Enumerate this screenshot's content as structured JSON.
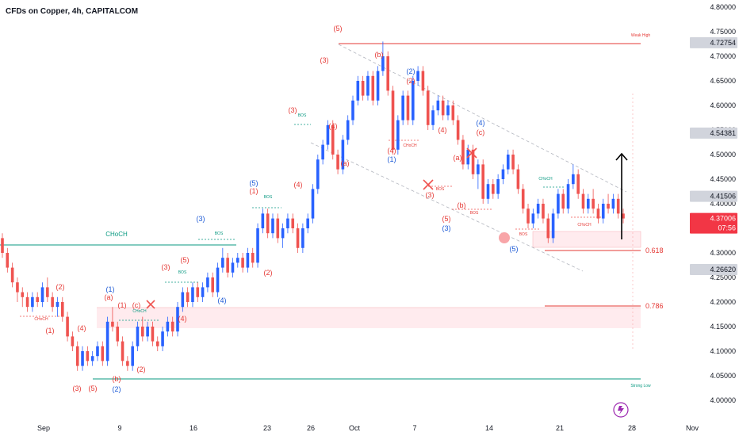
{
  "header": {
    "title": "CFDs on Copper, 4h, CAPITALCOM"
  },
  "colors": {
    "up": "#2962ff",
    "down": "#ef5350",
    "wave_red": "#e53935",
    "wave_blue": "#1e5bd6",
    "green": "#089981",
    "zone": "#ffebee",
    "label_gray": "#787b86",
    "price_tag_red": "#f23645"
  },
  "chart_data": {
    "type": "candlestick",
    "title": "CFDs on Copper, 4h, CAPITALCOM",
    "ylim": [
      4.0,
      4.8
    ],
    "y_ticks": [
      "4.80000",
      "4.75000",
      "4.70000",
      "4.65000",
      "4.60000",
      "4.55000",
      "4.50000",
      "4.45000",
      "4.40000",
      "4.35000",
      "4.30000",
      "4.25000",
      "4.20000",
      "4.15000",
      "4.10000",
      "4.05000",
      "4.00000"
    ],
    "price_tags": [
      {
        "value": 4.72754,
        "label": "4.72754",
        "style": "gray"
      },
      {
        "value": 4.54381,
        "label": "4.54381",
        "style": "gray"
      },
      {
        "value": 4.41506,
        "label": "4.41506",
        "style": "gray"
      },
      {
        "value": 4.37006,
        "label": "4.37006",
        "sub": "07:56",
        "style": "red"
      },
      {
        "value": 4.2662,
        "label": "4.26620",
        "style": "gray"
      }
    ],
    "x_ticks": [
      "Sep",
      "9",
      "16",
      "23",
      "26",
      "Oct",
      "7",
      "14",
      "21",
      "28",
      "Nov"
    ],
    "candles": [
      [
        4.33,
        4.34,
        4.29,
        4.3
      ],
      [
        4.3,
        4.31,
        4.26,
        4.27
      ],
      [
        4.27,
        4.28,
        4.23,
        4.24
      ],
      [
        4.24,
        4.25,
        4.2,
        4.22
      ],
      [
        4.22,
        4.23,
        4.19,
        4.21
      ],
      [
        4.21,
        4.22,
        4.18,
        4.19
      ],
      [
        4.19,
        4.22,
        4.18,
        4.21
      ],
      [
        4.21,
        4.22,
        4.19,
        4.2
      ],
      [
        4.2,
        4.24,
        4.19,
        4.23
      ],
      [
        4.23,
        4.25,
        4.2,
        4.21
      ],
      [
        4.21,
        4.22,
        4.18,
        4.19
      ],
      [
        4.19,
        4.21,
        4.17,
        4.2
      ],
      [
        4.2,
        4.21,
        4.16,
        4.17
      ],
      [
        4.17,
        4.18,
        4.12,
        4.13
      ],
      [
        4.13,
        4.14,
        4.1,
        4.11
      ],
      [
        4.11,
        4.12,
        4.06,
        4.07
      ],
      [
        4.07,
        4.11,
        4.06,
        4.1
      ],
      [
        4.1,
        4.11,
        4.07,
        4.08
      ],
      [
        4.08,
        4.1,
        4.07,
        4.09
      ],
      [
        4.09,
        4.12,
        4.08,
        4.11
      ],
      [
        4.11,
        4.12,
        4.07,
        4.08
      ],
      [
        4.08,
        4.17,
        4.07,
        4.16
      ],
      [
        4.16,
        4.19,
        4.14,
        4.15
      ],
      [
        4.15,
        4.16,
        4.11,
        4.12
      ],
      [
        4.12,
        4.13,
        4.07,
        4.08
      ],
      [
        4.08,
        4.09,
        4.06,
        4.07
      ],
      [
        4.07,
        4.12,
        4.06,
        4.11
      ],
      [
        4.11,
        4.16,
        4.1,
        4.15
      ],
      [
        4.15,
        4.17,
        4.12,
        4.13
      ],
      [
        4.13,
        4.16,
        4.12,
        4.15
      ],
      [
        4.15,
        4.16,
        4.11,
        4.12
      ],
      [
        4.12,
        4.13,
        4.1,
        4.11
      ],
      [
        4.11,
        4.15,
        4.1,
        4.14
      ],
      [
        4.14,
        4.17,
        4.13,
        4.16
      ],
      [
        4.16,
        4.17,
        4.13,
        4.14
      ],
      [
        4.14,
        4.2,
        4.13,
        4.19
      ],
      [
        4.19,
        4.23,
        4.18,
        4.22
      ],
      [
        4.22,
        4.23,
        4.19,
        4.2
      ],
      [
        4.2,
        4.24,
        4.19,
        4.23
      ],
      [
        4.23,
        4.24,
        4.2,
        4.21
      ],
      [
        4.21,
        4.24,
        4.2,
        4.23
      ],
      [
        4.23,
        4.26,
        4.22,
        4.25
      ],
      [
        4.25,
        4.26,
        4.21,
        4.22
      ],
      [
        4.22,
        4.28,
        4.21,
        4.27
      ],
      [
        4.27,
        4.31,
        4.26,
        4.29
      ],
      [
        4.29,
        4.3,
        4.25,
        4.26
      ],
      [
        4.26,
        4.29,
        4.25,
        4.28
      ],
      [
        4.28,
        4.3,
        4.27,
        4.29
      ],
      [
        4.29,
        4.3,
        4.26,
        4.27
      ],
      [
        4.27,
        4.31,
        4.26,
        4.3
      ],
      [
        4.3,
        4.31,
        4.27,
        4.28
      ],
      [
        4.28,
        4.36,
        4.27,
        4.35
      ],
      [
        4.35,
        4.39,
        4.34,
        4.38
      ],
      [
        4.38,
        4.39,
        4.33,
        4.34
      ],
      [
        4.34,
        4.38,
        4.33,
        4.37
      ],
      [
        4.37,
        4.38,
        4.32,
        4.33
      ],
      [
        4.33,
        4.36,
        4.31,
        4.35
      ],
      [
        4.35,
        4.38,
        4.34,
        4.37
      ],
      [
        4.37,
        4.38,
        4.34,
        4.35
      ],
      [
        4.35,
        4.36,
        4.3,
        4.31
      ],
      [
        4.31,
        4.36,
        4.3,
        4.35
      ],
      [
        4.35,
        4.38,
        4.34,
        4.37
      ],
      [
        4.37,
        4.44,
        4.36,
        4.43
      ],
      [
        4.43,
        4.5,
        4.42,
        4.49
      ],
      [
        4.49,
        4.53,
        4.48,
        4.52
      ],
      [
        4.52,
        4.57,
        4.51,
        4.56
      ],
      [
        4.56,
        4.57,
        4.49,
        4.5
      ],
      [
        4.5,
        4.51,
        4.46,
        4.47
      ],
      [
        4.47,
        4.54,
        4.46,
        4.53
      ],
      [
        4.53,
        4.58,
        4.52,
        4.57
      ],
      [
        4.57,
        4.62,
        4.56,
        4.61
      ],
      [
        4.61,
        4.66,
        4.6,
        4.65
      ],
      [
        4.65,
        4.66,
        4.61,
        4.62
      ],
      [
        4.62,
        4.67,
        4.61,
        4.66
      ],
      [
        4.66,
        4.67,
        4.6,
        4.61
      ],
      [
        4.61,
        4.68,
        4.6,
        4.67
      ],
      [
        4.67,
        4.73,
        4.66,
        4.7
      ],
      [
        4.7,
        4.71,
        4.62,
        4.63
      ],
      [
        4.63,
        4.64,
        4.5,
        4.51
      ],
      [
        4.51,
        4.58,
        4.5,
        4.57
      ],
      [
        4.57,
        4.63,
        4.56,
        4.62
      ],
      [
        4.62,
        4.63,
        4.56,
        4.57
      ],
      [
        4.57,
        4.66,
        4.56,
        4.65
      ],
      [
        4.65,
        4.68,
        4.64,
        4.67
      ],
      [
        4.67,
        4.68,
        4.62,
        4.63
      ],
      [
        4.63,
        4.64,
        4.55,
        4.56
      ],
      [
        4.56,
        4.6,
        4.55,
        4.59
      ],
      [
        4.59,
        4.62,
        4.58,
        4.61
      ],
      [
        4.61,
        4.62,
        4.57,
        4.58
      ],
      [
        4.58,
        4.61,
        4.57,
        4.6
      ],
      [
        4.6,
        4.61,
        4.56,
        4.57
      ],
      [
        4.57,
        4.58,
        4.52,
        4.53
      ],
      [
        4.53,
        4.54,
        4.47,
        4.48
      ],
      [
        4.48,
        4.52,
        4.47,
        4.51
      ],
      [
        4.51,
        4.52,
        4.45,
        4.46
      ],
      [
        4.46,
        4.49,
        4.43,
        4.48
      ],
      [
        4.48,
        4.49,
        4.4,
        4.41
      ],
      [
        4.41,
        4.45,
        4.4,
        4.44
      ],
      [
        4.44,
        4.45,
        4.41,
        4.42
      ],
      [
        4.42,
        4.46,
        4.41,
        4.45
      ],
      [
        4.45,
        4.48,
        4.44,
        4.47
      ],
      [
        4.47,
        4.51,
        4.46,
        4.5
      ],
      [
        4.5,
        4.51,
        4.46,
        4.47
      ],
      [
        4.47,
        4.48,
        4.42,
        4.43
      ],
      [
        4.43,
        4.44,
        4.38,
        4.39
      ],
      [
        4.39,
        4.4,
        4.35,
        4.36
      ],
      [
        4.36,
        4.39,
        4.35,
        4.38
      ],
      [
        4.38,
        4.41,
        4.37,
        4.4
      ],
      [
        4.4,
        4.41,
        4.36,
        4.37
      ],
      [
        4.37,
        4.38,
        4.32,
        4.33
      ],
      [
        4.33,
        4.39,
        4.32,
        4.38
      ],
      [
        4.38,
        4.43,
        4.37,
        4.42
      ],
      [
        4.42,
        4.43,
        4.38,
        4.39
      ],
      [
        4.39,
        4.45,
        4.38,
        4.44
      ],
      [
        4.44,
        4.48,
        4.43,
        4.46
      ],
      [
        4.46,
        4.47,
        4.41,
        4.42
      ],
      [
        4.42,
        4.43,
        4.38,
        4.39
      ],
      [
        4.39,
        4.42,
        4.38,
        4.41
      ],
      [
        4.41,
        4.43,
        4.38,
        4.39
      ],
      [
        4.39,
        4.4,
        4.36,
        4.37
      ],
      [
        4.37,
        4.41,
        4.36,
        4.4
      ],
      [
        4.4,
        4.42,
        4.38,
        4.39
      ],
      [
        4.39,
        4.42,
        4.38,
        4.41
      ],
      [
        4.41,
        4.42,
        4.37,
        4.38
      ],
      [
        4.38,
        4.39,
        4.36,
        4.37
      ]
    ],
    "annotations": {
      "red_labels": [
        {
          "t": "(2)",
          "x": 76,
          "y": 365
        },
        {
          "t": "(1)",
          "x": 63,
          "y": 420
        },
        {
          "t": "(4)",
          "x": 103,
          "y": 417
        },
        {
          "t": "(3)",
          "x": 97,
          "y": 493
        },
        {
          "t": "(5)",
          "x": 117,
          "y": 493
        },
        {
          "t": "(b)",
          "x": 147,
          "y": 481
        },
        {
          "t": "(a)",
          "x": 137,
          "y": 378
        },
        {
          "t": "(1)",
          "x": 154,
          "y": 388
        },
        {
          "t": "(c)",
          "x": 172,
          "y": 388
        },
        {
          "t": "(2)",
          "x": 178,
          "y": 469
        },
        {
          "t": "(3)",
          "x": 209,
          "y": 340
        },
        {
          "t": "(5)",
          "x": 233,
          "y": 331
        },
        {
          "t": "(4)",
          "x": 230,
          "y": 405
        },
        {
          "t": "(1)",
          "x": 320,
          "y": 244
        },
        {
          "t": "(2)",
          "x": 338,
          "y": 347
        },
        {
          "t": "(3)",
          "x": 369,
          "y": 142
        },
        {
          "t": "(4)",
          "x": 376,
          "y": 236
        },
        {
          "t": "(4)",
          "x": 420,
          "y": 162
        },
        {
          "t": "(3)",
          "x": 409,
          "y": 79
        },
        {
          "t": "(5)",
          "x": 426,
          "y": 39
        },
        {
          "t": "(a)",
          "x": 435,
          "y": 209
        },
        {
          "t": "(b)",
          "x": 478,
          "y": 72
        },
        {
          "t": "(2)",
          "x": 518,
          "y": 105
        },
        {
          "t": "(4)",
          "x": 494,
          "y": 193
        },
        {
          "t": "(4)",
          "x": 558,
          "y": 167
        },
        {
          "t": "(a)",
          "x": 577,
          "y": 202
        },
        {
          "t": "(c)",
          "x": 606,
          "y": 170
        },
        {
          "t": "(3)",
          "x": 542,
          "y": 249
        },
        {
          "t": "(b)",
          "x": 582,
          "y": 262
        },
        {
          "t": "(5)",
          "x": 563,
          "y": 279
        }
      ],
      "blue_labels": [
        {
          "t": "(1)",
          "x": 139,
          "y": 368
        },
        {
          "t": "(2)",
          "x": 147,
          "y": 494
        },
        {
          "t": "(3)",
          "x": 253,
          "y": 279
        },
        {
          "t": "(4)",
          "x": 280,
          "y": 382
        },
        {
          "t": "(5)",
          "x": 320,
          "y": 234
        },
        {
          "t": "(2)",
          "x": 518,
          "y": 93
        },
        {
          "t": "(1)",
          "x": 494,
          "y": 204
        },
        {
          "t": "(4)",
          "x": 606,
          "y": 158
        },
        {
          "t": "(3)",
          "x": 563,
          "y": 291
        },
        {
          "t": "(5)",
          "x": 648,
          "y": 317
        }
      ],
      "structure_text": [
        {
          "t": "CHoCH",
          "x": 147,
          "y": 298,
          "c": "green",
          "s": "normal"
        },
        {
          "t": "Weak High",
          "x": 808,
          "y": 46,
          "c": "red",
          "s": "tiny"
        },
        {
          "t": "Strong Low",
          "x": 808,
          "y": 488,
          "c": "green",
          "s": "tiny"
        },
        {
          "t": "CHoCH",
          "x": 52,
          "y": 404,
          "c": "red",
          "s": "tiny"
        },
        {
          "t": "CHoCH",
          "x": 176,
          "y": 394,
          "c": "green",
          "s": "tiny"
        },
        {
          "t": "BOS",
          "x": 230,
          "y": 345,
          "c": "green",
          "s": "tiny"
        },
        {
          "t": "BOS",
          "x": 276,
          "y": 296,
          "c": "green",
          "s": "tiny"
        },
        {
          "t": "BOS",
          "x": 338,
          "y": 250,
          "c": "green",
          "s": "tiny"
        },
        {
          "t": "BOS",
          "x": 381,
          "y": 147,
          "c": "green",
          "s": "tiny"
        },
        {
          "t": "CHoCH",
          "x": 517,
          "y": 185,
          "c": "red",
          "s": "tiny"
        },
        {
          "t": "BOS",
          "x": 555,
          "y": 240,
          "c": "red",
          "s": "tiny"
        },
        {
          "t": "BOS",
          "x": 598,
          "y": 270,
          "c": "red",
          "s": "tiny"
        },
        {
          "t": "BOS",
          "x": 660,
          "y": 297,
          "c": "red",
          "s": "tiny"
        },
        {
          "t": "CHoCH",
          "x": 688,
          "y": 227,
          "c": "green",
          "s": "tiny"
        },
        {
          "t": "CHoCH",
          "x": 737,
          "y": 285,
          "c": "red",
          "s": "tiny"
        }
      ],
      "fib_levels": [
        {
          "label": "0.618",
          "value": 4.305
        },
        {
          "label": "0.786",
          "value": 4.193
        }
      ]
    }
  }
}
